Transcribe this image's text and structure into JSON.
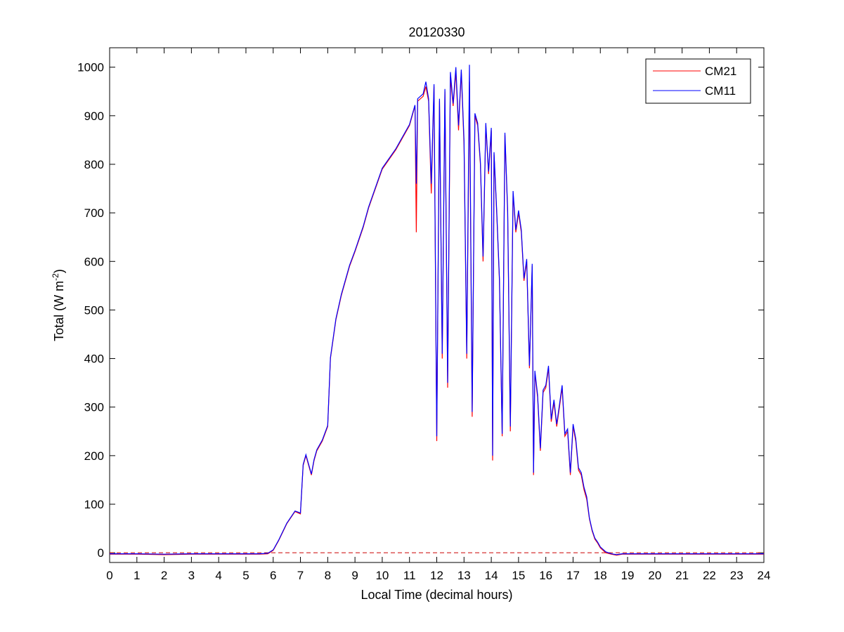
{
  "chart_data": {
    "type": "line",
    "title": "20120330",
    "xlabel": "Local Time (decimal hours)",
    "ylabel": {
      "prefix": "Total (W m",
      "sup": "-2",
      "suffix": ")"
    },
    "xlim": [
      0,
      24
    ],
    "ylim": [
      -20,
      1040
    ],
    "xticks": [
      0,
      1,
      2,
      3,
      4,
      5,
      6,
      7,
      8,
      9,
      10,
      11,
      12,
      13,
      14,
      15,
      16,
      17,
      18,
      19,
      20,
      21,
      22,
      23,
      24
    ],
    "yticks": [
      0,
      100,
      200,
      300,
      400,
      500,
      600,
      700,
      800,
      900,
      1000
    ],
    "grid": false,
    "legend_position": "top-right",
    "reference_line": {
      "y": 0,
      "style": "dashed",
      "color": "#cc0000"
    },
    "series": [
      {
        "name": "CM21",
        "color": "#ff0000",
        "x": [
          0,
          1,
          2,
          3,
          4,
          5,
          5.5,
          5.8,
          6.0,
          6.2,
          6.5,
          6.8,
          7.0,
          7.1,
          7.2,
          7.4,
          7.5,
          7.6,
          7.8,
          8.0,
          8.1,
          8.3,
          8.5,
          8.8,
          9.0,
          9.3,
          9.5,
          10.0,
          10.5,
          11.0,
          11.2,
          11.25,
          11.3,
          11.5,
          11.6,
          11.7,
          11.8,
          11.9,
          12.0,
          12.1,
          12.2,
          12.3,
          12.4,
          12.5,
          12.6,
          12.7,
          12.8,
          12.9,
          13.0,
          13.1,
          13.2,
          13.3,
          13.4,
          13.5,
          13.6,
          13.7,
          13.8,
          13.9,
          14.0,
          14.05,
          14.1,
          14.2,
          14.3,
          14.4,
          14.5,
          14.6,
          14.7,
          14.8,
          14.9,
          15.0,
          15.1,
          15.2,
          15.3,
          15.4,
          15.5,
          15.55,
          15.6,
          15.7,
          15.8,
          15.9,
          16.0,
          16.1,
          16.2,
          16.3,
          16.4,
          16.5,
          16.6,
          16.7,
          16.8,
          16.9,
          17.0,
          17.1,
          17.2,
          17.3,
          17.4,
          17.5,
          17.6,
          17.7,
          17.8,
          17.9,
          18.0,
          18.2,
          18.4,
          18.6,
          18.8,
          19,
          20,
          21,
          22,
          23,
          24
        ],
        "y": [
          -3,
          -3,
          -4,
          -3,
          -3,
          -3,
          -3,
          -2,
          5,
          25,
          60,
          85,
          80,
          180,
          200,
          160,
          190,
          210,
          230,
          260,
          400,
          480,
          530,
          590,
          620,
          670,
          710,
          790,
          830,
          880,
          920,
          660,
          930,
          940,
          960,
          930,
          740,
          960,
          230,
          930,
          400,
          950,
          340,
          980,
          920,
          990,
          870,
          990,
          840,
          400,
          970,
          280,
          900,
          880,
          800,
          600,
          880,
          780,
          870,
          190,
          820,
          700,
          560,
          240,
          860,
          700,
          250,
          740,
          660,
          700,
          660,
          560,
          600,
          380,
          590,
          160,
          370,
          320,
          210,
          330,
          340,
          380,
          270,
          310,
          260,
          300,
          340,
          240,
          250,
          160,
          260,
          230,
          170,
          160,
          130,
          110,
          70,
          45,
          28,
          20,
          10,
          0,
          -3,
          -5,
          -3,
          -3,
          -3,
          -3,
          -3,
          -3,
          -3
        ],
        "note_values_read_from_axes": true
      },
      {
        "name": "CM11",
        "color": "#0000ff",
        "x": [
          0,
          1,
          2,
          3,
          4,
          5,
          5.5,
          5.8,
          6.0,
          6.2,
          6.5,
          6.8,
          7.0,
          7.1,
          7.2,
          7.4,
          7.5,
          7.6,
          7.8,
          8.0,
          8.1,
          8.3,
          8.5,
          8.8,
          9.0,
          9.3,
          9.5,
          10.0,
          10.5,
          11.0,
          11.2,
          11.25,
          11.3,
          11.5,
          11.6,
          11.7,
          11.8,
          11.9,
          12.0,
          12.1,
          12.2,
          12.3,
          12.4,
          12.5,
          12.6,
          12.7,
          12.8,
          12.9,
          13.0,
          13.1,
          13.2,
          13.3,
          13.4,
          13.5,
          13.6,
          13.7,
          13.8,
          13.9,
          14.0,
          14.05,
          14.1,
          14.2,
          14.3,
          14.4,
          14.5,
          14.6,
          14.7,
          14.8,
          14.9,
          15.0,
          15.1,
          15.2,
          15.3,
          15.4,
          15.5,
          15.55,
          15.6,
          15.7,
          15.8,
          15.9,
          16.0,
          16.1,
          16.2,
          16.3,
          16.4,
          16.5,
          16.6,
          16.7,
          16.8,
          16.9,
          17.0,
          17.1,
          17.2,
          17.3,
          17.4,
          17.5,
          17.6,
          17.7,
          17.8,
          17.9,
          18.0,
          18.2,
          18.4,
          18.6,
          18.8,
          19,
          20,
          21,
          22,
          23,
          24
        ],
        "y": [
          -2,
          -2,
          -3,
          -2,
          -2,
          -2,
          -2,
          -1,
          6,
          26,
          61,
          86,
          82,
          182,
          202,
          162,
          192,
          212,
          232,
          262,
          402,
          482,
          532,
          592,
          622,
          672,
          712,
          792,
          832,
          882,
          922,
          760,
          935,
          945,
          970,
          935,
          760,
          965,
          240,
          935,
          410,
          955,
          350,
          990,
          925,
          1000,
          880,
          995,
          850,
          410,
          1005,
          290,
          905,
          885,
          805,
          610,
          885,
          785,
          875,
          200,
          825,
          705,
          565,
          245,
          865,
          705,
          260,
          745,
          665,
          705,
          665,
          565,
          605,
          385,
          595,
          165,
          375,
          325,
          215,
          335,
          345,
          385,
          275,
          315,
          265,
          305,
          345,
          245,
          255,
          165,
          265,
          235,
          175,
          165,
          135,
          115,
          72,
          47,
          30,
          22,
          12,
          2,
          -2,
          -4,
          -2,
          -2,
          -2,
          -2,
          -2,
          -2,
          -2
        ]
      }
    ]
  }
}
